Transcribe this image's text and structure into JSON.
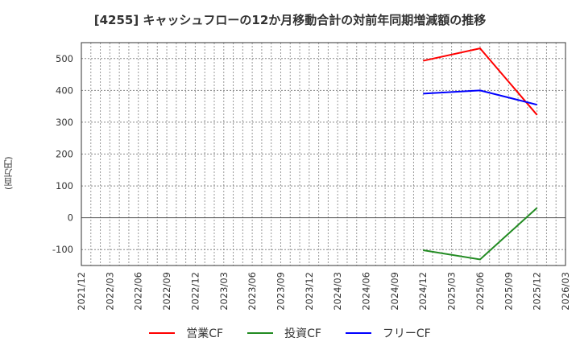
{
  "title": "[4255]  キャッシュフローの12か月移動合計の対前年同期増減額の推移",
  "y_axis_label": "(百万円)",
  "legend": [
    {
      "label": "営業CF",
      "color": "#ff0000"
    },
    {
      "label": "投資CF",
      "color": "#228b22"
    },
    {
      "label": "フリーCF",
      "color": "#0000ff"
    }
  ],
  "chart_data": {
    "type": "line",
    "title": "[4255]  キャッシュフローの12か月移動合計の対前年同期増減額の推移",
    "xlabel": "",
    "ylabel": "(百万円)",
    "ylim": [
      -150,
      550
    ],
    "yticks": [
      -100,
      0,
      100,
      200,
      300,
      400,
      500
    ],
    "xlim": [
      "2021/12",
      "2026/03"
    ],
    "categories": [
      "2021/12",
      "2022/03",
      "2022/06",
      "2022/09",
      "2022/12",
      "2023/03",
      "2023/06",
      "2023/09",
      "2023/12",
      "2024/03",
      "2024/06",
      "2024/09",
      "2024/12",
      "2025/03",
      "2025/06",
      "2025/09",
      "2025/12",
      "2026/03"
    ],
    "grid": true,
    "legend_position": "bottom",
    "series": [
      {
        "name": "営業CF",
        "color": "#ff0000",
        "x": [
          "2024/12",
          "2025/06",
          "2025/12"
        ],
        "values": [
          493,
          532,
          323
        ]
      },
      {
        "name": "投資CF",
        "color": "#228b22",
        "x": [
          "2024/12",
          "2025/06",
          "2025/12"
        ],
        "values": [
          -102,
          -131,
          31
        ]
      },
      {
        "name": "フリーCF",
        "color": "#0000ff",
        "x": [
          "2024/12",
          "2025/06",
          "2025/12"
        ],
        "values": [
          390,
          400,
          355
        ]
      }
    ]
  }
}
